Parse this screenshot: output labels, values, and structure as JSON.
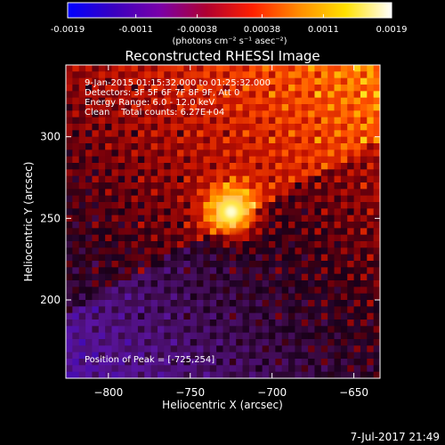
{
  "chart_data": {
    "type": "heatmap",
    "title": "Reconstructed RHESSI Image",
    "xlabel": "Heliocentric X (arcsec)",
    "ylabel": "Heliocentric Y (arcsec)",
    "xlim": [
      -826,
      -634
    ],
    "ylim": [
      152,
      344
    ],
    "x_ticks": [
      -800,
      -750,
      -700,
      -650
    ],
    "y_ticks": [
      200,
      250,
      300
    ],
    "colorbar": {
      "ticks": [
        -0.0019,
        -0.0011,
        -0.00038,
        0.00038,
        0.0011,
        0.0019
      ],
      "tick_labels": [
        "-0.0019",
        "-0.0011",
        "-0.00038",
        "0.00038",
        "0.0011",
        "0.0019"
      ],
      "range": [
        -0.0019,
        0.0019
      ],
      "unit_label": "(photons cm⁻² s⁻¹ asec⁻²)",
      "colors": [
        "#0000ff",
        "#3a00c0",
        "#7a00a8",
        "#b00030",
        "#ff2000",
        "#ff8c00",
        "#ffe100",
        "#ffffff"
      ]
    },
    "peak": [
      -725,
      254
    ],
    "annotations": {
      "time_range": "9-Jan-2015 01:15:32.000 to 01:25:32.000",
      "detectors": "Detectors: 3F 5F 6F 7F 8F 9F, Att 0",
      "energy_range": "Energy Range: 6.0 - 12.0 keV",
      "clean_counts": "Clean    Total counts: 6.27E+04",
      "peak_position": "Position of Peak = [-725,254]"
    }
  },
  "footer": {
    "timestamp": "7-Jul-2017 21:49"
  },
  "colors": {
    "background": "#000000",
    "axes": "#ffffff"
  }
}
